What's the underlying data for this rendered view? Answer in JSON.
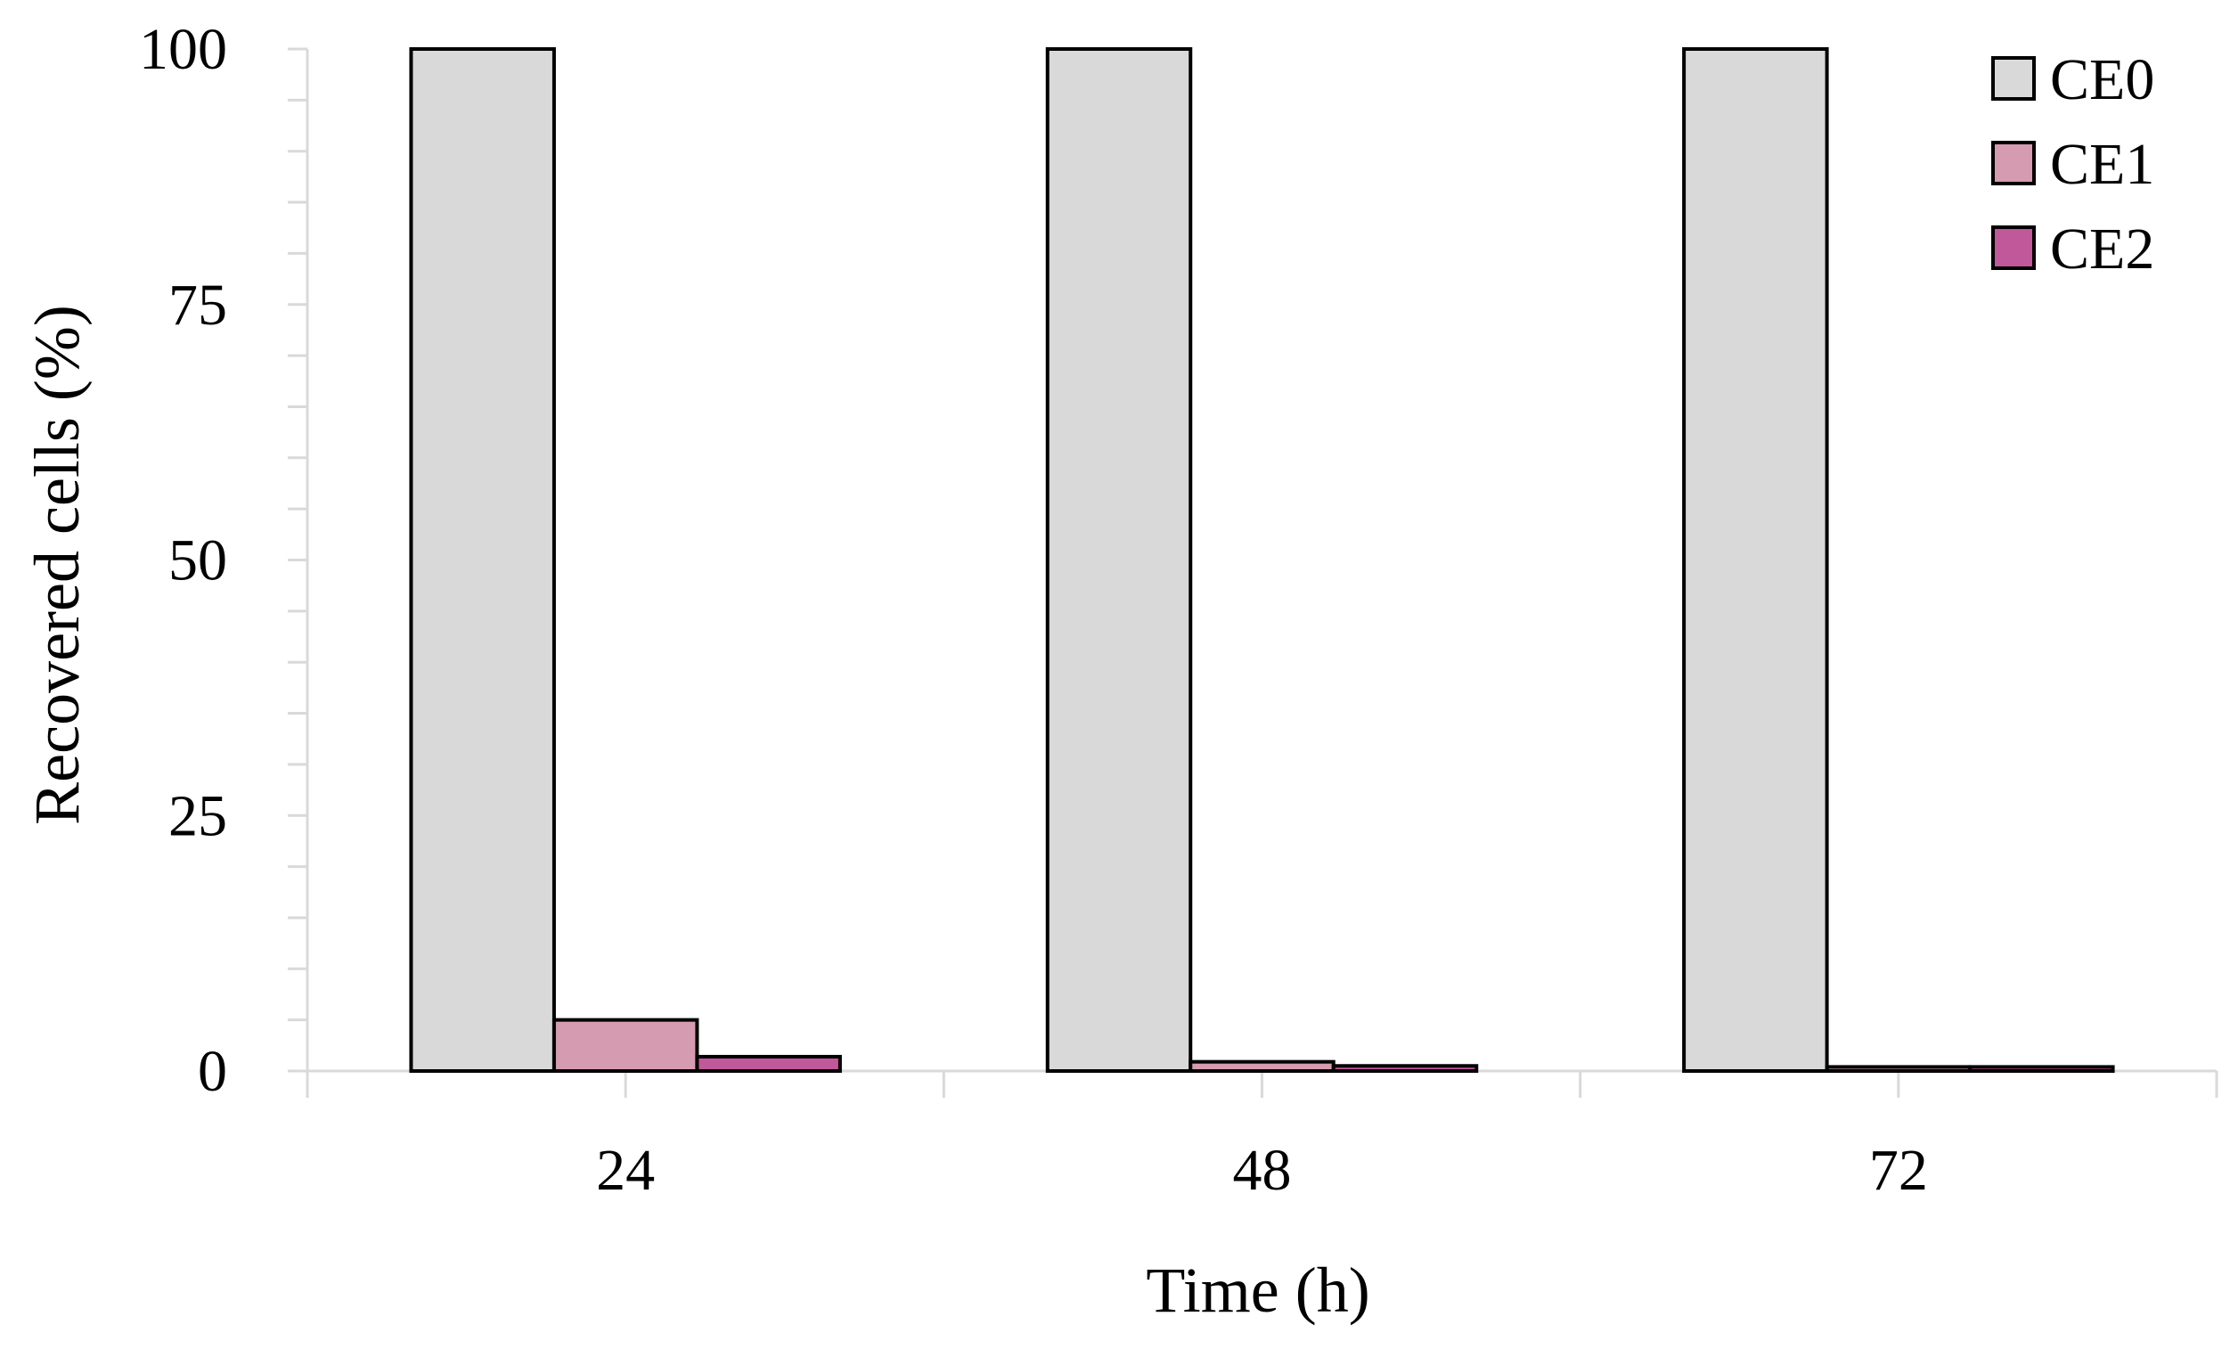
{
  "chart_data": {
    "type": "bar",
    "categories": [
      "24",
      "48",
      "72"
    ],
    "series": [
      {
        "name": "CE0",
        "values": [
          100,
          100,
          100
        ],
        "color": "#d9d9d9"
      },
      {
        "name": "CE1",
        "values": [
          5,
          0.9,
          0.4
        ],
        "color": "#d59bb0"
      },
      {
        "name": "CE2",
        "values": [
          1.4,
          0.5,
          0.4
        ],
        "color": "#c0589a"
      }
    ],
    "xlabel": "Time (h)",
    "ylabel": "Recovered cells (%)",
    "ylim": [
      0,
      100
    ],
    "yticks": [
      0,
      25,
      50,
      75,
      100
    ],
    "minor_tick_step": 5,
    "grid": false,
    "legend_position": "top-right"
  }
}
